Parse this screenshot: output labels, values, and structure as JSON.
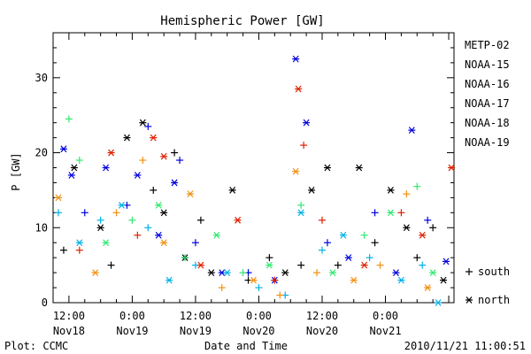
{
  "chart_data": {
    "type": "scatter",
    "title": "Hemispheric Power [GW]",
    "ylabel": "P [GW]",
    "xlabel": "Date and Time",
    "ylim": [
      0,
      36
    ],
    "yticks": [
      0,
      10,
      20,
      30
    ],
    "xlim": [
      "2010-11-18T09:00",
      "2010-11-21T13:00"
    ],
    "xticks": [
      {
        "t": "2010-11-18T12:00",
        "time": "12:00",
        "date": "Nov18"
      },
      {
        "t": "2010-11-19T00:00",
        "time": "0:00",
        "date": "Nov19"
      },
      {
        "t": "2010-11-19T12:00",
        "time": "12:00",
        "date": "Nov19"
      },
      {
        "t": "2010-11-20T00:00",
        "time": "0:00",
        "date": "Nov20"
      },
      {
        "t": "2010-11-20T12:00",
        "time": "12:00",
        "date": "Nov20"
      },
      {
        "t": "2010-11-21T00:00",
        "time": "0:00",
        "date": "Nov21"
      }
    ],
    "markers": {
      "plus": "south",
      "star": "north"
    },
    "series": [
      {
        "name": "METP-02",
        "color": "#000000",
        "points": [
          {
            "t": "2010-11-18T11:00",
            "y": 7,
            "m": "plus"
          },
          {
            "t": "2010-11-18T13:00",
            "y": 18,
            "m": "star"
          },
          {
            "t": "2010-11-18T18:00",
            "y": 10,
            "m": "star"
          },
          {
            "t": "2010-11-18T20:00",
            "y": 5,
            "m": "plus"
          },
          {
            "t": "2010-11-18T23:00",
            "y": 22,
            "m": "star"
          },
          {
            "t": "2010-11-19T02:00",
            "y": 24,
            "m": "star"
          },
          {
            "t": "2010-11-19T04:00",
            "y": 15,
            "m": "plus"
          },
          {
            "t": "2010-11-19T06:00",
            "y": 12,
            "m": "star"
          },
          {
            "t": "2010-11-19T08:00",
            "y": 20,
            "m": "plus"
          },
          {
            "t": "2010-11-19T10:00",
            "y": 6,
            "m": "star"
          },
          {
            "t": "2010-11-19T13:00",
            "y": 11,
            "m": "plus"
          },
          {
            "t": "2010-11-19T15:00",
            "y": 4,
            "m": "star"
          },
          {
            "t": "2010-11-19T19:00",
            "y": 15,
            "m": "star"
          },
          {
            "t": "2010-11-19T22:00",
            "y": 3,
            "m": "plus"
          },
          {
            "t": "2010-11-20T02:00",
            "y": 6,
            "m": "plus"
          },
          {
            "t": "2010-11-20T05:00",
            "y": 4,
            "m": "star"
          },
          {
            "t": "2010-11-20T08:00",
            "y": 5,
            "m": "plus"
          },
          {
            "t": "2010-11-20T10:00",
            "y": 15,
            "m": "star"
          },
          {
            "t": "2010-11-20T13:00",
            "y": 18,
            "m": "star"
          },
          {
            "t": "2010-11-20T15:00",
            "y": 5,
            "m": "plus"
          },
          {
            "t": "2010-11-20T19:00",
            "y": 18,
            "m": "star"
          },
          {
            "t": "2010-11-20T22:00",
            "y": 8,
            "m": "plus"
          },
          {
            "t": "2010-11-21T01:00",
            "y": 15,
            "m": "star"
          },
          {
            "t": "2010-11-21T04:00",
            "y": 10,
            "m": "star"
          },
          {
            "t": "2010-11-21T06:00",
            "y": 6,
            "m": "plus"
          },
          {
            "t": "2010-11-21T09:00",
            "y": 10,
            "m": "plus"
          },
          {
            "t": "2010-11-21T11:00",
            "y": 3,
            "m": "star"
          }
        ]
      },
      {
        "name": "NOAA-15",
        "color": "#0000dd",
        "points": [
          {
            "t": "2010-11-18T11:00",
            "y": 20.5,
            "m": "star"
          },
          {
            "t": "2010-11-18T12:30",
            "y": 17,
            "m": "star"
          },
          {
            "t": "2010-11-18T15:00",
            "y": 12,
            "m": "plus"
          },
          {
            "t": "2010-11-18T19:00",
            "y": 18,
            "m": "star"
          },
          {
            "t": "2010-11-18T23:00",
            "y": 13,
            "m": "plus"
          },
          {
            "t": "2010-11-19T01:00",
            "y": 17,
            "m": "star"
          },
          {
            "t": "2010-11-19T03:00",
            "y": 23.5,
            "m": "plus"
          },
          {
            "t": "2010-11-19T05:00",
            "y": 9,
            "m": "star"
          },
          {
            "t": "2010-11-19T08:00",
            "y": 16,
            "m": "star"
          },
          {
            "t": "2010-11-19T09:00",
            "y": 19,
            "m": "plus"
          },
          {
            "t": "2010-11-19T12:00",
            "y": 8,
            "m": "plus"
          },
          {
            "t": "2010-11-19T17:00",
            "y": 4,
            "m": "star"
          },
          {
            "t": "2010-11-19T22:00",
            "y": 4,
            "m": "plus"
          },
          {
            "t": "2010-11-20T03:00",
            "y": 3,
            "m": "star"
          },
          {
            "t": "2010-11-20T07:00",
            "y": 32.5,
            "m": "star"
          },
          {
            "t": "2010-11-20T09:00",
            "y": 24,
            "m": "star"
          },
          {
            "t": "2010-11-20T13:00",
            "y": 8,
            "m": "plus"
          },
          {
            "t": "2010-11-20T17:00",
            "y": 6,
            "m": "star"
          },
          {
            "t": "2010-11-20T22:00",
            "y": 12,
            "m": "plus"
          },
          {
            "t": "2010-11-21T02:00",
            "y": 4,
            "m": "star"
          },
          {
            "t": "2010-11-21T05:00",
            "y": 23,
            "m": "star"
          },
          {
            "t": "2010-11-21T08:00",
            "y": 11,
            "m": "plus"
          },
          {
            "t": "2010-11-21T11:30",
            "y": 5.5,
            "m": "star"
          }
        ]
      },
      {
        "name": "NOAA-16",
        "color": "#00b0e8",
        "points": [
          {
            "t": "2010-11-18T10:00",
            "y": 12,
            "m": "plus"
          },
          {
            "t": "2010-11-18T14:00",
            "y": 8,
            "m": "star"
          },
          {
            "t": "2010-11-18T18:00",
            "y": 11,
            "m": "plus"
          },
          {
            "t": "2010-11-18T22:00",
            "y": 13,
            "m": "star"
          },
          {
            "t": "2010-11-19T03:00",
            "y": 10,
            "m": "plus"
          },
          {
            "t": "2010-11-19T07:00",
            "y": 3,
            "m": "star"
          },
          {
            "t": "2010-11-19T12:00",
            "y": 5,
            "m": "plus"
          },
          {
            "t": "2010-11-19T18:00",
            "y": 4,
            "m": "star"
          },
          {
            "t": "2010-11-20T00:00",
            "y": 2,
            "m": "plus"
          },
          {
            "t": "2010-11-20T05:00",
            "y": 1,
            "m": "plus"
          },
          {
            "t": "2010-11-20T08:00",
            "y": 12,
            "m": "star"
          },
          {
            "t": "2010-11-20T12:00",
            "y": 7,
            "m": "plus"
          },
          {
            "t": "2010-11-20T16:00",
            "y": 9,
            "m": "star"
          },
          {
            "t": "2010-11-20T21:00",
            "y": 6,
            "m": "plus"
          },
          {
            "t": "2010-11-21T03:00",
            "y": 3,
            "m": "star"
          },
          {
            "t": "2010-11-21T07:00",
            "y": 5,
            "m": "plus"
          },
          {
            "t": "2010-11-21T10:00",
            "y": 0,
            "m": "star"
          }
        ]
      },
      {
        "name": "NOAA-17",
        "color": "#30e870",
        "points": [
          {
            "t": "2010-11-18T12:00",
            "y": 24.5,
            "m": "plus"
          },
          {
            "t": "2010-11-18T14:00",
            "y": 19,
            "m": "plus"
          },
          {
            "t": "2010-11-18T19:00",
            "y": 8,
            "m": "star"
          },
          {
            "t": "2010-11-19T00:00",
            "y": 11,
            "m": "plus"
          },
          {
            "t": "2010-11-19T05:00",
            "y": 13,
            "m": "star"
          },
          {
            "t": "2010-11-19T10:00",
            "y": 6,
            "m": "plus"
          },
          {
            "t": "2010-11-19T16:00",
            "y": 9,
            "m": "star"
          },
          {
            "t": "2010-11-19T21:00",
            "y": 4,
            "m": "plus"
          },
          {
            "t": "2010-11-20T02:00",
            "y": 5,
            "m": "star"
          },
          {
            "t": "2010-11-20T08:00",
            "y": 13,
            "m": "plus"
          },
          {
            "t": "2010-11-20T14:00",
            "y": 4,
            "m": "star"
          },
          {
            "t": "2010-11-20T20:00",
            "y": 9,
            "m": "plus"
          },
          {
            "t": "2010-11-21T01:00",
            "y": 12,
            "m": "star"
          },
          {
            "t": "2010-11-21T06:00",
            "y": 15.5,
            "m": "plus"
          },
          {
            "t": "2010-11-21T09:00",
            "y": 4,
            "m": "star"
          }
        ]
      },
      {
        "name": "NOAA-18",
        "color": "#f09010",
        "points": [
          {
            "t": "2010-11-18T10:00",
            "y": 14,
            "m": "star"
          },
          {
            "t": "2010-11-18T17:00",
            "y": 4,
            "m": "star"
          },
          {
            "t": "2010-11-18T21:00",
            "y": 12,
            "m": "plus"
          },
          {
            "t": "2010-11-19T02:00",
            "y": 19,
            "m": "plus"
          },
          {
            "t": "2010-11-19T06:00",
            "y": 8,
            "m": "star"
          },
          {
            "t": "2010-11-19T11:00",
            "y": 14.5,
            "m": "star"
          },
          {
            "t": "2010-11-19T17:00",
            "y": 2,
            "m": "plus"
          },
          {
            "t": "2010-11-19T23:00",
            "y": 3,
            "m": "star"
          },
          {
            "t": "2010-11-20T04:00",
            "y": 1,
            "m": "plus"
          },
          {
            "t": "2010-11-20T07:00",
            "y": 17.5,
            "m": "star"
          },
          {
            "t": "2010-11-20T11:00",
            "y": 4,
            "m": "plus"
          },
          {
            "t": "2010-11-20T18:00",
            "y": 3,
            "m": "star"
          },
          {
            "t": "2010-11-20T23:00",
            "y": 5,
            "m": "plus"
          },
          {
            "t": "2010-11-21T04:00",
            "y": 14.5,
            "m": "plus"
          },
          {
            "t": "2010-11-21T08:00",
            "y": 2,
            "m": "star"
          }
        ]
      },
      {
        "name": "NOAA-19",
        "color": "#e02000",
        "points": [
          {
            "t": "2010-11-18T14:00",
            "y": 7,
            "m": "plus"
          },
          {
            "t": "2010-11-18T20:00",
            "y": 20,
            "m": "star"
          },
          {
            "t": "2010-11-19T01:00",
            "y": 9,
            "m": "plus"
          },
          {
            "t": "2010-11-19T04:00",
            "y": 22,
            "m": "star"
          },
          {
            "t": "2010-11-19T06:00",
            "y": 19.5,
            "m": "star"
          },
          {
            "t": "2010-11-19T13:00",
            "y": 5,
            "m": "star"
          },
          {
            "t": "2010-11-19T20:00",
            "y": 11,
            "m": "star"
          },
          {
            "t": "2010-11-20T03:00",
            "y": 3,
            "m": "plus"
          },
          {
            "t": "2010-11-20T07:30",
            "y": 28.5,
            "m": "star"
          },
          {
            "t": "2010-11-20T08:30",
            "y": 21,
            "m": "plus"
          },
          {
            "t": "2010-11-20T12:00",
            "y": 11,
            "m": "plus"
          },
          {
            "t": "2010-11-20T20:00",
            "y": 5,
            "m": "star"
          },
          {
            "t": "2010-11-21T03:00",
            "y": 12,
            "m": "plus"
          },
          {
            "t": "2010-11-21T07:00",
            "y": 9,
            "m": "star"
          },
          {
            "t": "2010-11-21T12:30",
            "y": 18,
            "m": "star"
          }
        ]
      }
    ]
  },
  "footer": {
    "left": "Plot: CCMC",
    "right": "2010/11/21 11:00:51"
  }
}
